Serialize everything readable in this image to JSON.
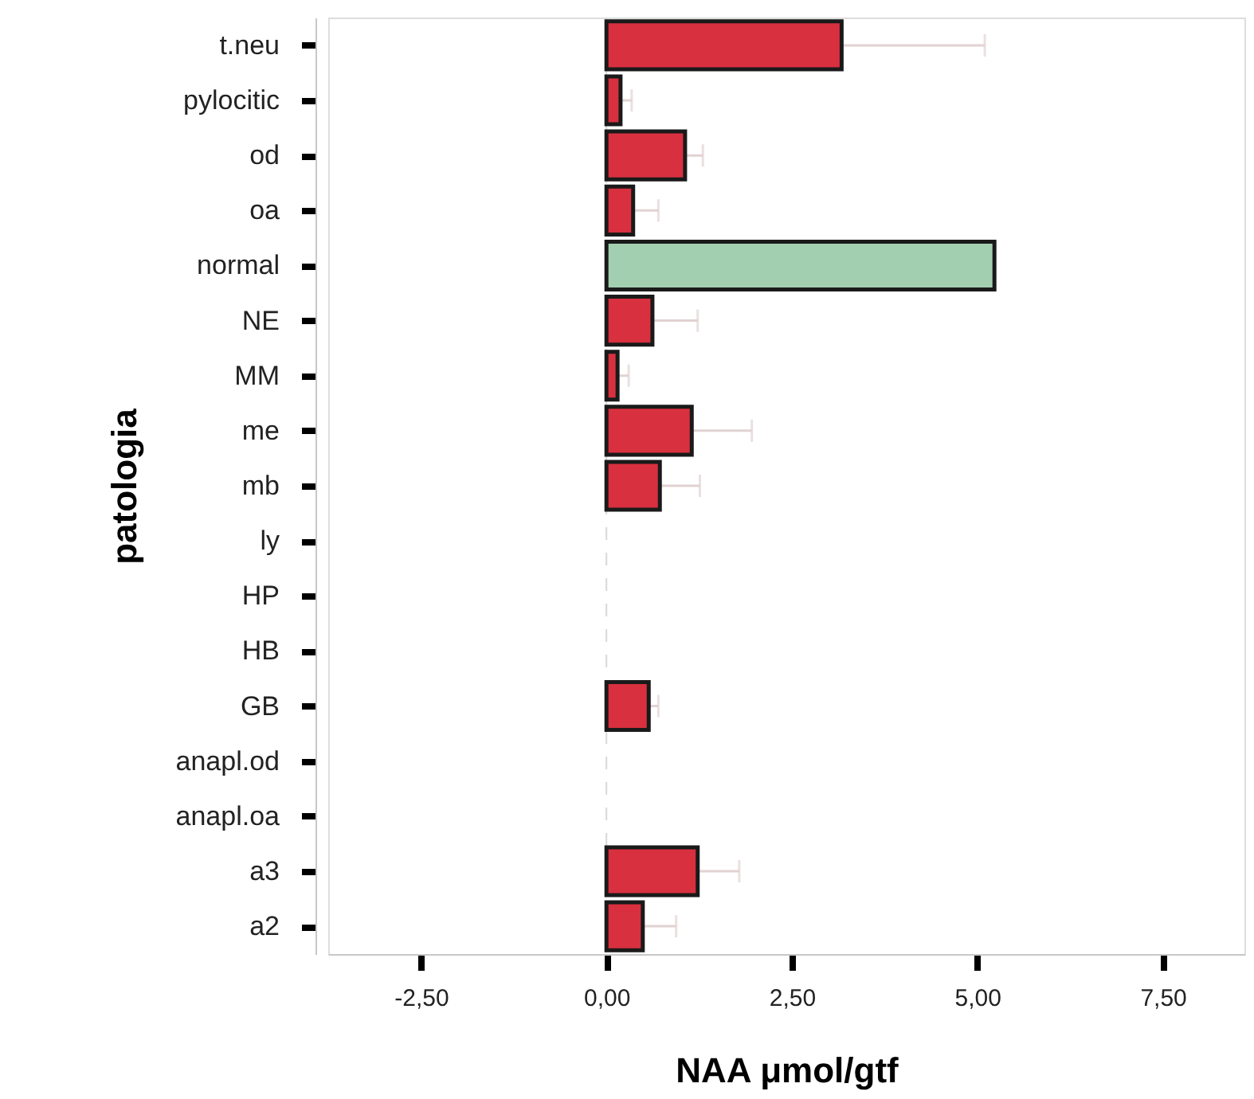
{
  "chart_data": {
    "type": "bar",
    "orientation": "horizontal",
    "xlabel": "NAA μmol/gtf",
    "ylabel": "patologia",
    "categories": [
      "t.neu",
      "pylocitic",
      "od",
      "oa",
      "normal",
      "NE",
      "MM",
      "me",
      "mb",
      "ly",
      "HP",
      "HB",
      "GB",
      "anapl.od",
      "anapl.oa",
      "a3",
      "a2"
    ],
    "values": [
      3.17,
      0.19,
      1.06,
      0.36,
      5.23,
      0.62,
      0.15,
      1.15,
      0.72,
      null,
      null,
      null,
      0.57,
      null,
      null,
      1.23,
      0.49
    ],
    "errors": [
      1.93,
      0.15,
      0.24,
      0.34,
      null,
      0.61,
      0.15,
      0.81,
      0.54,
      null,
      null,
      null,
      0.13,
      null,
      null,
      0.56,
      0.45
    ],
    "colors": [
      "#d9303f",
      "#d9303f",
      "#d9303f",
      "#d9303f",
      "#a3cfb1",
      "#d9303f",
      "#d9303f",
      "#d9303f",
      "#d9303f",
      "#d9303f",
      "#d9303f",
      "#d9303f",
      "#d9303f",
      "#d9303f",
      "#d9303f",
      "#d9303f",
      "#d9303f"
    ],
    "xlim": [
      -3.75,
      8.6
    ],
    "xticks": [
      {
        "value": -2.5,
        "label": "-2,50"
      },
      {
        "value": 0,
        "label": "0,00"
      },
      {
        "value": 2.5,
        "label": "2,50"
      },
      {
        "value": 5,
        "label": "5,00"
      },
      {
        "value": 7.5,
        "label": "7,50"
      }
    ],
    "ref_lines": [
      {
        "axis": "x",
        "value": 0,
        "line_style": "dashed",
        "color": "#d8d8d8"
      }
    ],
    "grid": false
  }
}
